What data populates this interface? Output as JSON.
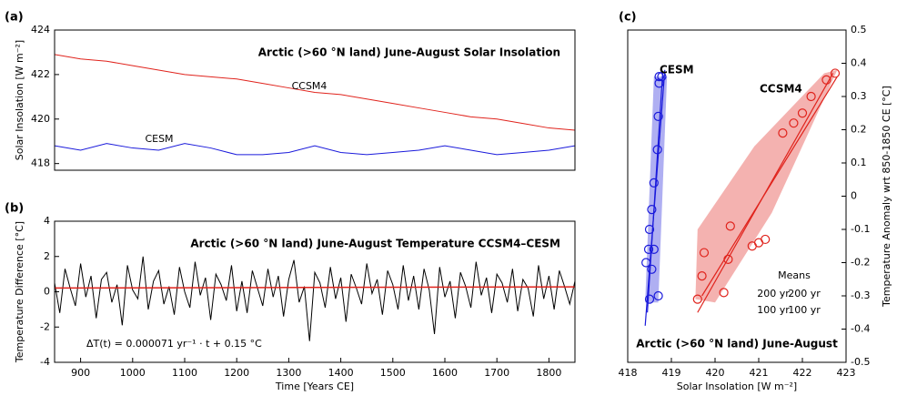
{
  "chart_data": [
    {
      "type": "line",
      "label": "(a)",
      "title": "Arctic (>60 °N land) June-August Solar Insolation",
      "y_label": "Solar Insolation [W m⁻²]",
      "x": [
        850,
        900,
        950,
        1000,
        1050,
        1100,
        1150,
        1200,
        1250,
        1300,
        1350,
        1400,
        1450,
        1500,
        1550,
        1600,
        1650,
        1700,
        1750,
        1800,
        1850
      ],
      "series": [
        {
          "name": "CCSM4",
          "color": "#e0231c",
          "values": [
            422.9,
            422.7,
            422.6,
            422.4,
            422.2,
            422.0,
            421.9,
            421.8,
            421.6,
            421.4,
            421.2,
            421.1,
            420.9,
            420.7,
            420.5,
            420.3,
            420.1,
            420.0,
            419.8,
            419.6,
            419.5
          ]
        },
        {
          "name": "CESM",
          "color": "#1a1adb",
          "values": [
            418.8,
            418.6,
            418.9,
            418.7,
            418.6,
            418.9,
            418.7,
            418.4,
            418.4,
            418.5,
            418.8,
            418.5,
            418.4,
            418.5,
            418.6,
            418.8,
            418.6,
            418.4,
            418.5,
            418.6,
            418.8
          ]
        }
      ],
      "xlim": [
        850,
        1850
      ],
      "ylim": [
        417.7,
        424
      ],
      "yticks": [
        418,
        420,
        422,
        424
      ]
    },
    {
      "type": "line",
      "label": "(b)",
      "title": "Arctic (>60 °N land) June-August Temperature CCSM4–CESM",
      "y_label": "Temperature Difference [°C]",
      "x_label": "Time [Years CE]",
      "annotation": "ΔT(t) = 0.000071 yr⁻¹ · t + 0.15 °C",
      "x": [
        850,
        860,
        870,
        880,
        890,
        900,
        910,
        920,
        930,
        940,
        950,
        960,
        970,
        980,
        990,
        1000,
        1010,
        1020,
        1030,
        1040,
        1050,
        1060,
        1070,
        1080,
        1090,
        1100,
        1110,
        1120,
        1130,
        1140,
        1150,
        1160,
        1170,
        1180,
        1190,
        1200,
        1210,
        1220,
        1230,
        1240,
        1250,
        1260,
        1270,
        1280,
        1290,
        1300,
        1310,
        1320,
        1330,
        1340,
        1350,
        1360,
        1370,
        1380,
        1390,
        1400,
        1410,
        1420,
        1430,
        1440,
        1450,
        1460,
        1470,
        1480,
        1490,
        1500,
        1510,
        1520,
        1530,
        1540,
        1550,
        1560,
        1570,
        1580,
        1590,
        1600,
        1610,
        1620,
        1630,
        1640,
        1650,
        1660,
        1670,
        1680,
        1690,
        1700,
        1710,
        1720,
        1730,
        1740,
        1750,
        1760,
        1770,
        1780,
        1790,
        1800,
        1810,
        1820,
        1830,
        1840,
        1850
      ],
      "series": [
        {
          "color": "#000000",
          "values": [
            0.5,
            -1.2,
            1.3,
            0.2,
            -0.8,
            1.6,
            -0.3,
            0.9,
            -1.5,
            0.7,
            1.1,
            -0.6,
            0.4,
            -1.9,
            1.5,
            0.1,
            -0.4,
            2.0,
            -1.0,
            0.6,
            1.2,
            -0.7,
            0.3,
            -1.3,
            1.4,
            0.0,
            -0.9,
            1.7,
            -0.2,
            0.8,
            -1.6,
            1.0,
            0.4,
            -0.5,
            1.5,
            -1.1,
            0.6,
            -1.2,
            1.2,
            0.2,
            -0.8,
            1.3,
            -0.3,
            0.9,
            -1.4,
            0.7,
            1.8,
            -0.6,
            0.3,
            -2.8,
            1.1,
            0.5,
            -0.9,
            1.4,
            -0.4,
            0.8,
            -1.7,
            1.0,
            0.2,
            -0.7,
            1.6,
            -0.1,
            0.7,
            -1.3,
            1.2,
            0.4,
            -1.0,
            1.5,
            -0.5,
            0.9,
            -1.0,
            1.3,
            0.1,
            -2.4,
            1.4,
            -0.3,
            0.6,
            -1.5,
            1.1,
            0.3,
            -0.9,
            1.7,
            -0.2,
            0.8,
            -1.2,
            1.0,
            0.5,
            -0.6,
            1.3,
            -1.1,
            0.7,
            0.2,
            -1.4,
            1.5,
            -0.4,
            0.9,
            -1.0,
            1.2,
            0.3,
            -0.7,
            0.6
          ]
        }
      ],
      "trend": {
        "color": "#e0231c",
        "x": [
          850,
          1850
        ],
        "values": [
          0.21,
          0.28
        ]
      },
      "xlim": [
        850,
        1850
      ],
      "xticks": [
        900,
        1000,
        1100,
        1200,
        1300,
        1400,
        1500,
        1600,
        1700,
        1800
      ],
      "ylim": [
        -4,
        4
      ],
      "yticks": [
        -4,
        -2,
        0,
        2,
        4
      ]
    },
    {
      "type": "scatter",
      "label": "(c)",
      "title": "Arctic (>60 °N land) June-August",
      "x_label": "Solar Insolation [W m⁻²]",
      "y_label": "Temperature Anomaly wrt 850-1850 CE [°C]",
      "series": [
        {
          "name": "CESM",
          "color": "#1a1adb",
          "x": [
            418.72,
            418.78,
            418.72,
            418.7,
            418.68,
            418.6,
            418.55,
            418.5,
            418.6,
            418.48,
            418.42,
            418.55,
            418.7,
            418.5
          ],
          "values": [
            0.36,
            0.36,
            0.34,
            0.24,
            0.14,
            0.04,
            -0.04,
            -0.1,
            -0.16,
            -0.16,
            -0.2,
            -0.22,
            -0.3,
            -0.31
          ],
          "fits": [
            {
              "x": [
                418.4,
                418.85
              ],
              "values": [
                -0.39,
                0.38
              ]
            },
            {
              "x": [
                418.45,
                418.8
              ],
              "values": [
                -0.35,
                0.37
              ]
            }
          ],
          "band": {
            "x": [
              418.4,
              418.6,
              418.9,
              418.7
            ],
            "values": [
              -0.32,
              0.36,
              0.36,
              -0.32
            ]
          }
        },
        {
          "name": "CCSM4",
          "color": "#e0231c",
          "x": [
            422.75,
            422.55,
            422.2,
            422.0,
            421.8,
            421.55,
            420.35,
            420.3,
            420.85,
            421.0,
            421.15,
            419.75,
            419.7,
            419.6,
            420.2
          ],
          "values": [
            0.37,
            0.35,
            0.3,
            0.25,
            0.22,
            0.19,
            -0.09,
            -0.19,
            -0.15,
            -0.14,
            -0.13,
            -0.17,
            -0.24,
            -0.31,
            -0.29
          ],
          "fits": [
            {
              "x": [
                419.6,
                422.7
              ],
              "values": [
                -0.35,
                0.37
              ]
            },
            {
              "x": [
                419.7,
                422.8
              ],
              "values": [
                -0.3,
                0.36
              ]
            }
          ],
          "band": {
            "x": [
              419.55,
              420.0,
              421.3,
              422.8,
              422.5,
              420.9,
              419.6
            ],
            "values": [
              -0.31,
              -0.32,
              -0.05,
              0.38,
              0.37,
              0.15,
              -0.1
            ]
          }
        }
      ],
      "means_legend": {
        "title": "Means",
        "labels": [
          [
            "200 yr",
            "200 yr"
          ],
          [
            "100 yr",
            "100 yr"
          ]
        ]
      },
      "xlim": [
        418,
        423
      ],
      "xticks": [
        418,
        419,
        420,
        421,
        422,
        423
      ],
      "ylim": [
        -0.5,
        0.5
      ],
      "yticks": [
        -0.5,
        -0.4,
        -0.3,
        -0.2,
        -0.1,
        0,
        0.1,
        0.2,
        0.3,
        0.4,
        0.5
      ]
    }
  ]
}
